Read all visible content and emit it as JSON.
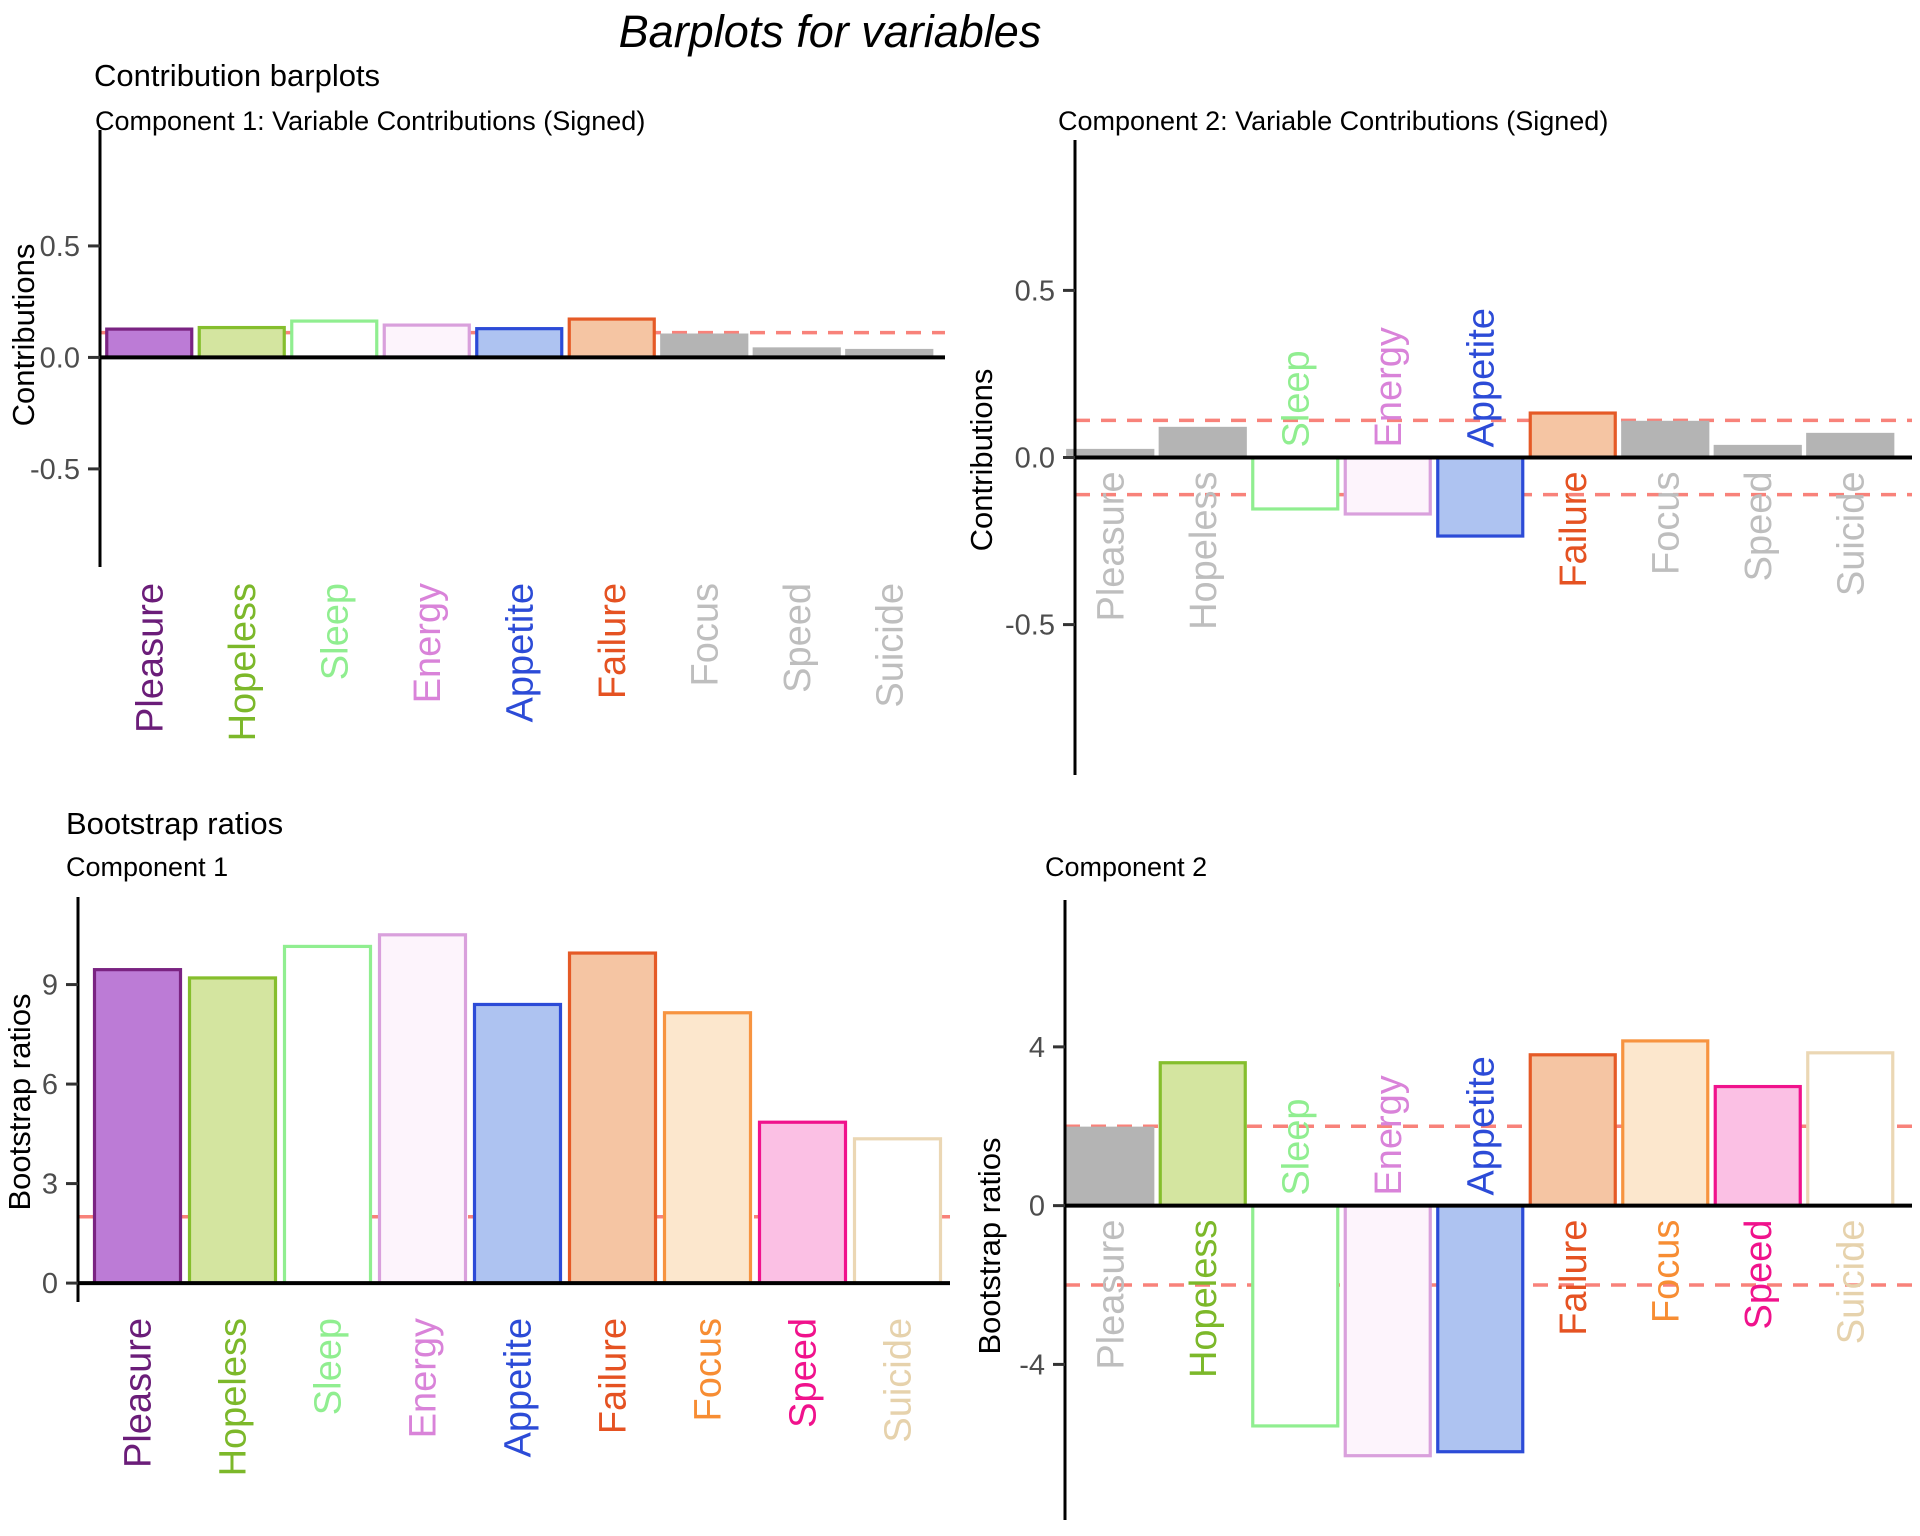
{
  "title": "Barplots for variables",
  "sections": {
    "contributions": "Contribution barplots",
    "bootstrap": "Bootstrap ratios"
  },
  "style": {
    "threshold_color": "#F8827A",
    "tick_text_color": "#4D4D4D",
    "axis_color": "#000000",
    "gray_bar": "#B4B4B4",
    "gray_label": "#BEBEBE"
  },
  "variables": [
    "Pleasure",
    "Hopeless",
    "Sleep",
    "Energy",
    "Appetite",
    "Failure",
    "Focus",
    "Speed",
    "Suicide"
  ],
  "variable_colors": {
    "Pleasure": "#7A2382",
    "Hopeless": "#85BE2D",
    "Sleep": "#90EE90",
    "Energy": "#D98BD9",
    "Appetite": "#2C4BD7",
    "Failure": "#E55A26",
    "Focus": "#F79440",
    "Speed": "#F0128C",
    "Suicide": "#EBD7B4"
  },
  "chart_data": [
    {
      "id": "contrib-comp1",
      "type": "bar",
      "title": "Component 1: Variable Contributions (Signed)",
      "ylabel": "Contributions",
      "categories": [
        "Pleasure",
        "Hopeless",
        "Sleep",
        "Energy",
        "Appetite",
        "Failure",
        "Focus",
        "Speed",
        "Suicide"
      ],
      "values": [
        0.127,
        0.134,
        0.163,
        0.145,
        0.129,
        0.172,
        0.1,
        0.038,
        0.031
      ],
      "thresholds": [
        0.111
      ],
      "yticks": [
        {
          "v": 0.5,
          "label": "0.5"
        },
        {
          "v": 0,
          "label": "0.0"
        },
        {
          "v": -0.5,
          "label": "-0.5"
        }
      ],
      "ylim": [
        -0.94,
        1.02
      ],
      "grid": false,
      "legend": "none",
      "bars": [
        {
          "fill": "#BC7BD6",
          "stroke": "#7A2382",
          "label": "#6B1D79"
        },
        {
          "fill": "#D4E5A0",
          "stroke": "#85BE2D",
          "label": "#7CB82A"
        },
        {
          "fill": "#FFFFFF",
          "stroke": "#90EE90",
          "label": "#90EE90"
        },
        {
          "fill": "#FDF4FC",
          "stroke": "#D9A0DC",
          "label": "#D983D9"
        },
        {
          "fill": "#AEC3F1",
          "stroke": "#2C4BD7",
          "label": "#2C4BD7"
        },
        {
          "fill": "#F5C5A3",
          "stroke": "#E55A26",
          "label": "#E55222"
        },
        {
          "fill": "#B4B4B4",
          "stroke": "#B4B4B4",
          "label": "#BEBEBE"
        },
        {
          "fill": "#B4B4B4",
          "stroke": "#B4B4B4",
          "label": "#BEBEBE"
        },
        {
          "fill": "#B4B4B4",
          "stroke": "#B4B4B4",
          "label": "#BEBEBE"
        }
      ]
    },
    {
      "id": "contrib-comp2",
      "type": "bar",
      "title": "Component 2: Variable Contributions (Signed)",
      "ylabel": "Contributions",
      "categories": [
        "Pleasure",
        "Hopeless",
        "Sleep",
        "Energy",
        "Appetite",
        "Failure",
        "Focus",
        "Speed",
        "Suicide"
      ],
      "values": [
        0.021,
        0.087,
        -0.154,
        -0.169,
        -0.235,
        0.133,
        0.105,
        0.033,
        0.069
      ],
      "thresholds": [
        0.111,
        -0.111
      ],
      "yticks": [
        {
          "v": 0.5,
          "label": "0.5"
        },
        {
          "v": 0,
          "label": "0.0"
        },
        {
          "v": -0.5,
          "label": "-0.5"
        }
      ],
      "ylim": [
        -0.95,
        0.95
      ],
      "grid": false,
      "legend": "none",
      "bars": [
        {
          "fill": "#B4B4B4",
          "stroke": "#B4B4B4",
          "label": "#BEBEBE"
        },
        {
          "fill": "#B4B4B4",
          "stroke": "#B4B4B4",
          "label": "#BEBEBE"
        },
        {
          "fill": "#FFFFFF",
          "stroke": "#90EE90",
          "label": "#90EE90"
        },
        {
          "fill": "#FDF4FC",
          "stroke": "#D9A0DC",
          "label": "#D983D9"
        },
        {
          "fill": "#AEC3F1",
          "stroke": "#2C4BD7",
          "label": "#2C4BD7"
        },
        {
          "fill": "#F5C5A3",
          "stroke": "#E55A26",
          "label": "#E55222"
        },
        {
          "fill": "#B4B4B4",
          "stroke": "#B4B4B4",
          "label": "#BEBEBE"
        },
        {
          "fill": "#B4B4B4",
          "stroke": "#B4B4B4",
          "label": "#BEBEBE"
        },
        {
          "fill": "#B4B4B4",
          "stroke": "#B4B4B4",
          "label": "#BEBEBE"
        }
      ]
    },
    {
      "id": "boot-comp1",
      "type": "bar",
      "title": "Component 1",
      "ylabel": "Bootstrap ratios",
      "categories": [
        "Pleasure",
        "Hopeless",
        "Sleep",
        "Energy",
        "Appetite",
        "Failure",
        "Focus",
        "Speed",
        "Suicide"
      ],
      "values": [
        9.45,
        9.2,
        10.15,
        10.5,
        8.4,
        9.95,
        8.15,
        4.85,
        4.35
      ],
      "thresholds": [
        2
      ],
      "yticks": [
        {
          "v": 9,
          "label": "9"
        },
        {
          "v": 6,
          "label": "6"
        },
        {
          "v": 3,
          "label": "3"
        },
        {
          "v": 0,
          "label": "0"
        }
      ],
      "ylim": [
        -0.57,
        11.64
      ],
      "grid": false,
      "legend": "none",
      "bars": [
        {
          "fill": "#BC7BD6",
          "stroke": "#7A2382",
          "label": "#6B1D79"
        },
        {
          "fill": "#D4E5A0",
          "stroke": "#85BE2D",
          "label": "#7CB82A"
        },
        {
          "fill": "#FFFFFF",
          "stroke": "#90EE90",
          "label": "#90EE90"
        },
        {
          "fill": "#FDF4FC",
          "stroke": "#D9A0DC",
          "label": "#D983D9"
        },
        {
          "fill": "#AEC3F1",
          "stroke": "#2C4BD7",
          "label": "#2C4BD7"
        },
        {
          "fill": "#F5C5A3",
          "stroke": "#E55A26",
          "label": "#E55222"
        },
        {
          "fill": "#FCE7CD",
          "stroke": "#F79440",
          "label": "#F78D33"
        },
        {
          "fill": "#FBC0E4",
          "stroke": "#F0128C",
          "label": "#F0128C"
        },
        {
          "fill": "#FFFFFF",
          "stroke": "#EBD7B4",
          "label": "#E6D2AC"
        }
      ]
    },
    {
      "id": "boot-comp2",
      "type": "bar",
      "title": "Component 2",
      "ylabel": "Bootstrap ratios",
      "categories": [
        "Pleasure",
        "Hopeless",
        "Sleep",
        "Energy",
        "Appetite",
        "Failure",
        "Focus",
        "Speed",
        "Suicide"
      ],
      "values": [
        1.95,
        3.6,
        -5.55,
        -6.3,
        -6.2,
        3.8,
        4.15,
        3.0,
        3.85
      ],
      "thresholds": [
        2,
        -2
      ],
      "yticks": [
        {
          "v": 4,
          "label": "4"
        },
        {
          "v": 0,
          "label": "0"
        },
        {
          "v": -4,
          "label": "-4"
        }
      ],
      "ylim": [
        -7.92,
        7.7
      ],
      "grid": false,
      "legend": "none",
      "bars": [
        {
          "fill": "#B4B4B4",
          "stroke": "#B4B4B4",
          "label": "#BEBEBE"
        },
        {
          "fill": "#D4E5A0",
          "stroke": "#85BE2D",
          "label": "#7CB82A"
        },
        {
          "fill": "#FFFFFF",
          "stroke": "#90EE90",
          "label": "#90EE90"
        },
        {
          "fill": "#FDF4FC",
          "stroke": "#D9A0DC",
          "label": "#D983D9"
        },
        {
          "fill": "#AEC3F1",
          "stroke": "#2C4BD7",
          "label": "#2C4BD7"
        },
        {
          "fill": "#F5C5A3",
          "stroke": "#E55A26",
          "label": "#E55222"
        },
        {
          "fill": "#FCE7CD",
          "stroke": "#F79440",
          "label": "#F78D33"
        },
        {
          "fill": "#FBC0E4",
          "stroke": "#F0128C",
          "label": "#F0128C"
        },
        {
          "fill": "#FFFFFF",
          "stroke": "#EBD7B4",
          "label": "#E6D2AC"
        }
      ]
    }
  ]
}
